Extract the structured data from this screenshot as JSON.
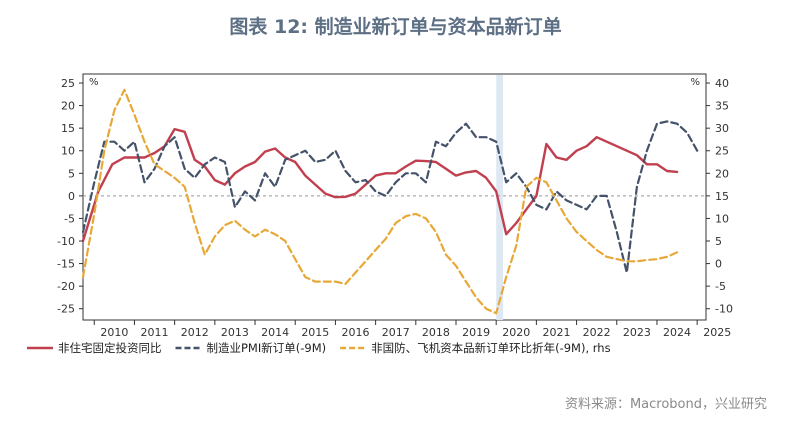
{
  "chart_data": {
    "type": "line",
    "title": "图表 12: 制造业新订单与资本品新订单",
    "source": "资料来源：Macrobond，兴业研究",
    "left_unit": "%",
    "right_unit": "%",
    "x_ticks": [
      "2010",
      "2011",
      "2012",
      "2013",
      "2014",
      "2015",
      "2016",
      "2017",
      "2018",
      "2019",
      "2020",
      "2021",
      "2022",
      "2023",
      "2024",
      "2025"
    ],
    "xlim": [
      2009.72,
      2025.22
    ],
    "y_left": {
      "ticks": [
        25,
        20,
        15,
        10,
        5,
        0,
        -5,
        -10,
        -15,
        -20,
        -25
      ],
      "range": [
        -27.5,
        27
      ]
    },
    "y_right": {
      "ticks": [
        40,
        35,
        30,
        25,
        20,
        15,
        10,
        5,
        0,
        -5,
        -10
      ],
      "range": [
        -12.5,
        42
      ]
    },
    "shaded_period": [
      2020.0,
      2020.17
    ],
    "zero_line_left": 0,
    "series": [
      {
        "name": "非住宅固定投资同比",
        "axis": "left",
        "color": "#c0404f",
        "style": "solid",
        "points": [
          [
            2009.72,
            -10
          ],
          [
            2010.1,
            1
          ],
          [
            2010.45,
            7
          ],
          [
            2010.75,
            8.5
          ],
          [
            2011.0,
            8.5
          ],
          [
            2011.25,
            8.5
          ],
          [
            2011.5,
            9.5
          ],
          [
            2011.75,
            11
          ],
          [
            2012.0,
            14.8
          ],
          [
            2012.25,
            14.2
          ],
          [
            2012.5,
            8
          ],
          [
            2012.75,
            6.5
          ],
          [
            2013.0,
            3.5
          ],
          [
            2013.25,
            2.5
          ],
          [
            2013.5,
            5
          ],
          [
            2013.75,
            6.5
          ],
          [
            2014.0,
            7.5
          ],
          [
            2014.25,
            9.8
          ],
          [
            2014.5,
            10.5
          ],
          [
            2014.75,
            8.5
          ],
          [
            2015.0,
            7.5
          ],
          [
            2015.25,
            4.5
          ],
          [
            2015.5,
            2.5
          ],
          [
            2015.75,
            0.5
          ],
          [
            2016.0,
            -0.3
          ],
          [
            2016.25,
            -0.2
          ],
          [
            2016.5,
            0.5
          ],
          [
            2016.75,
            2.5
          ],
          [
            2017.0,
            4.5
          ],
          [
            2017.25,
            5
          ],
          [
            2017.5,
            5
          ],
          [
            2017.75,
            6.5
          ],
          [
            2018.0,
            7.8
          ],
          [
            2018.25,
            7.7
          ],
          [
            2018.5,
            7.5
          ],
          [
            2018.75,
            6
          ],
          [
            2019.0,
            4.5
          ],
          [
            2019.25,
            5.2
          ],
          [
            2019.5,
            5.5
          ],
          [
            2019.75,
            4
          ],
          [
            2020.0,
            1
          ],
          [
            2020.25,
            -8.5
          ],
          [
            2020.5,
            -6
          ],
          [
            2020.75,
            -3
          ],
          [
            2021.0,
            0
          ],
          [
            2021.25,
            11.5
          ],
          [
            2021.5,
            8.5
          ],
          [
            2021.75,
            8
          ],
          [
            2022.0,
            10
          ],
          [
            2022.25,
            11
          ],
          [
            2022.5,
            13
          ],
          [
            2022.75,
            12
          ],
          [
            2023.0,
            11
          ],
          [
            2023.25,
            10
          ],
          [
            2023.5,
            9
          ],
          [
            2023.75,
            7
          ],
          [
            2024.0,
            7
          ],
          [
            2024.25,
            5.5
          ],
          [
            2024.5,
            5.3
          ]
        ]
      },
      {
        "name": "制造业PMI新订单(-9M)",
        "axis": "left",
        "color": "#44536a",
        "style": "dashed",
        "points": [
          [
            2009.72,
            -8
          ],
          [
            2010.0,
            3
          ],
          [
            2010.25,
            12
          ],
          [
            2010.5,
            12
          ],
          [
            2010.75,
            10
          ],
          [
            2011.0,
            12
          ],
          [
            2011.25,
            3
          ],
          [
            2011.5,
            6
          ],
          [
            2011.75,
            11
          ],
          [
            2012.0,
            13
          ],
          [
            2012.25,
            6
          ],
          [
            2012.5,
            4
          ],
          [
            2012.75,
            7
          ],
          [
            2013.0,
            8.5
          ],
          [
            2013.25,
            7.5
          ],
          [
            2013.5,
            -2.5
          ],
          [
            2013.75,
            1
          ],
          [
            2014.0,
            -1
          ],
          [
            2014.25,
            5
          ],
          [
            2014.5,
            2
          ],
          [
            2014.75,
            8
          ],
          [
            2015.0,
            9
          ],
          [
            2015.25,
            10
          ],
          [
            2015.5,
            7.5
          ],
          [
            2015.75,
            8
          ],
          [
            2016.0,
            10
          ],
          [
            2016.25,
            5.5
          ],
          [
            2016.5,
            3
          ],
          [
            2016.75,
            3.5
          ],
          [
            2017.0,
            1
          ],
          [
            2017.25,
            0
          ],
          [
            2017.5,
            3
          ],
          [
            2017.75,
            5
          ],
          [
            2018.0,
            5
          ],
          [
            2018.25,
            3
          ],
          [
            2018.5,
            12
          ],
          [
            2018.75,
            11
          ],
          [
            2019.0,
            14
          ],
          [
            2019.25,
            16
          ],
          [
            2019.5,
            13
          ],
          [
            2019.75,
            13
          ],
          [
            2020.0,
            12
          ],
          [
            2020.25,
            3
          ],
          [
            2020.5,
            5
          ],
          [
            2020.75,
            2
          ],
          [
            2021.0,
            -2
          ],
          [
            2021.25,
            -3
          ],
          [
            2021.5,
            1
          ],
          [
            2021.75,
            -1
          ],
          [
            2022.0,
            -2
          ],
          [
            2022.25,
            -3
          ],
          [
            2022.5,
            0
          ],
          [
            2022.75,
            0
          ],
          [
            2023.0,
            -8
          ],
          [
            2023.25,
            -17
          ],
          [
            2023.5,
            2
          ],
          [
            2023.75,
            10
          ],
          [
            2024.0,
            16
          ],
          [
            2024.25,
            16.5
          ],
          [
            2024.5,
            16
          ],
          [
            2024.75,
            14
          ],
          [
            2025.0,
            10
          ]
        ]
      },
      {
        "name": "非国防、飞机资本品新订单环比折年(-9M), rhs",
        "axis": "right",
        "color": "#e8a838",
        "style": "dashed",
        "points": [
          [
            2009.72,
            -3
          ],
          [
            2010.0,
            11
          ],
          [
            2010.25,
            25
          ],
          [
            2010.5,
            34
          ],
          [
            2010.75,
            38.5
          ],
          [
            2011.0,
            33
          ],
          [
            2011.25,
            27
          ],
          [
            2011.5,
            22
          ],
          [
            2011.75,
            20.5
          ],
          [
            2012.0,
            19
          ],
          [
            2012.25,
            17
          ],
          [
            2012.5,
            9
          ],
          [
            2012.75,
            2
          ],
          [
            2013.0,
            6
          ],
          [
            2013.25,
            8.5
          ],
          [
            2013.5,
            9.5
          ],
          [
            2013.75,
            7.5
          ],
          [
            2014.0,
            6
          ],
          [
            2014.25,
            7.5
          ],
          [
            2014.5,
            6.5
          ],
          [
            2014.75,
            5
          ],
          [
            2015.0,
            1
          ],
          [
            2015.25,
            -3
          ],
          [
            2015.5,
            -4
          ],
          [
            2015.75,
            -4
          ],
          [
            2016.0,
            -4
          ],
          [
            2016.25,
            -4.5
          ],
          [
            2016.5,
            -2
          ],
          [
            2016.75,
            0.5
          ],
          [
            2017.0,
            3
          ],
          [
            2017.25,
            5.5
          ],
          [
            2017.5,
            9
          ],
          [
            2017.75,
            10.5
          ],
          [
            2018.0,
            11
          ],
          [
            2018.25,
            10
          ],
          [
            2018.5,
            7
          ],
          [
            2018.75,
            2
          ],
          [
            2019.0,
            -0.5
          ],
          [
            2019.25,
            -4
          ],
          [
            2019.5,
            -7.5
          ],
          [
            2019.75,
            -10
          ],
          [
            2020.0,
            -11
          ],
          [
            2020.25,
            -3
          ],
          [
            2020.5,
            4
          ],
          [
            2020.75,
            17
          ],
          [
            2021.0,
            19
          ],
          [
            2021.25,
            18
          ],
          [
            2021.5,
            14
          ],
          [
            2021.75,
            10
          ],
          [
            2022.0,
            7
          ],
          [
            2022.25,
            5
          ],
          [
            2022.5,
            3
          ],
          [
            2022.75,
            1.5
          ],
          [
            2023.0,
            1
          ],
          [
            2023.25,
            0.5
          ],
          [
            2023.5,
            0.5
          ],
          [
            2023.75,
            0.8
          ],
          [
            2024.0,
            1
          ],
          [
            2024.25,
            1.5
          ],
          [
            2024.5,
            2.5
          ]
        ]
      }
    ],
    "legend": [
      {
        "label": "非住宅固定投资同比",
        "color": "#c0404f",
        "style": "solid"
      },
      {
        "label": "制造业PMI新订单(-9M)",
        "color": "#44536a",
        "style": "dashed"
      },
      {
        "label": "非国防、飞机资本品新订单环比折年(-9M), rhs",
        "color": "#e8a838",
        "style": "dashed"
      }
    ]
  }
}
